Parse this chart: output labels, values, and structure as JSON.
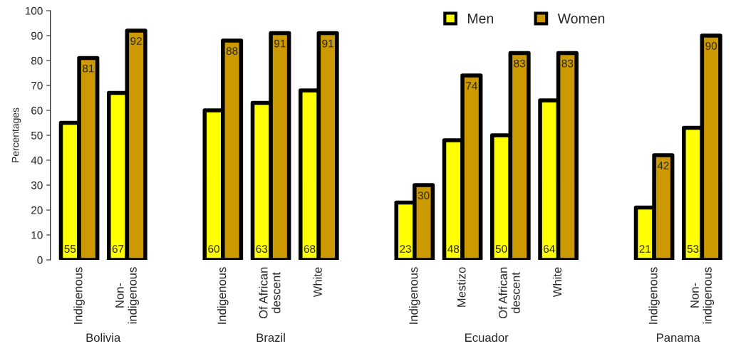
{
  "chart_data": {
    "type": "bar",
    "ylabel": "Percentages",
    "categories": [
      "Indigenous",
      "Non-\nindigenous",
      null,
      "Indigenous",
      "Of African\ndescent",
      "White",
      null,
      "Indigenous",
      "Mestizo",
      "Of African\ndescent",
      "White",
      null,
      "Indigenous",
      "Non-\nindigenous"
    ],
    "series": [
      {
        "name": "Men",
        "color": "#ffff00",
        "values": [
          55,
          67,
          null,
          60,
          63,
          68,
          null,
          23,
          48,
          50,
          64,
          null,
          21,
          53
        ]
      },
      {
        "name": "Women",
        "color": "#cc9900",
        "values": [
          81,
          92,
          null,
          88,
          91,
          91,
          null,
          30,
          74,
          83,
          83,
          null,
          42,
          90
        ]
      }
    ],
    "annotations": [
      "Bolivia",
      "Brazil",
      "Ecuador",
      "Panama"
    ],
    "ylim": [
      0,
      100
    ],
    "yticks": [
      0,
      10,
      20,
      30,
      40,
      50,
      60,
      70,
      80,
      90,
      100
    ],
    "data_labels": true,
    "grid": false,
    "legend": "top"
  }
}
